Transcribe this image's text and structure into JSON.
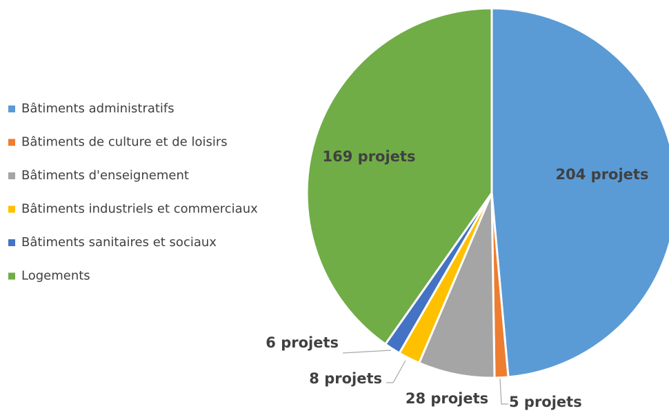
{
  "chart_data": {
    "type": "pie",
    "categories": [
      "Bâtiments administratifs",
      "Bâtiments de culture et de loisirs",
      "Bâtiments d'enseignement",
      "Bâtiments industriels et commerciaux",
      "Bâtiments sanitaires et sociaux",
      "Logements"
    ],
    "values": [
      204,
      5,
      28,
      8,
      6,
      169
    ],
    "value_labels": [
      "204 projets",
      "5 projets",
      "28 projets",
      "8 projets",
      "6 projets",
      "169 projets"
    ],
    "colors": [
      "#5b9bd5",
      "#ed7d31",
      "#a5a5a5",
      "#ffc000",
      "#4472c4",
      "#70ad47"
    ],
    "legend": "left"
  }
}
